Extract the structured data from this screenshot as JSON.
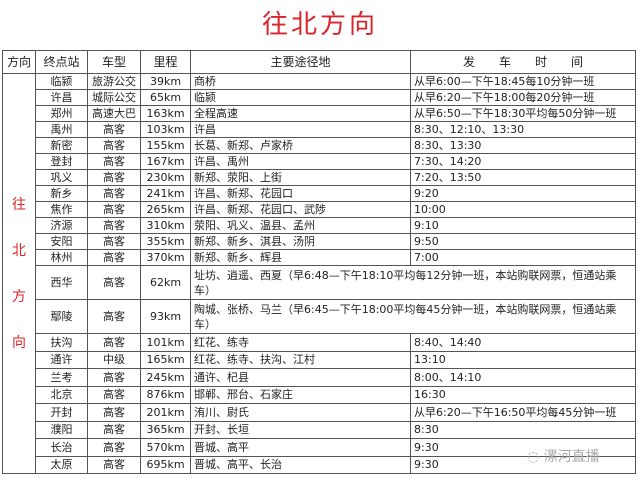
{
  "title": "往北方向",
  "headers": [
    "方向",
    "终点站",
    "车型",
    "里程",
    "主要途径地",
    "发　　车　　时　　间"
  ],
  "direction_chars": [
    "往",
    "北",
    "方",
    "向"
  ],
  "rows": [
    {
      "dest": "临颍",
      "type": "旅游公交",
      "km": "39km",
      "route": "商桥",
      "time": "从早6:00—下午18:45每10分钟一班"
    },
    {
      "dest": "许昌",
      "type": "城际公交",
      "km": "65km",
      "route": "临颍",
      "time": "从早6:20—下午18:00每20分钟一班"
    },
    {
      "dest": "郑州",
      "type": "高速大巴",
      "km": "163km",
      "route": "全程高速",
      "time": "从早6:50—下午18:30平均每50分钟一班"
    },
    {
      "dest": "禹州",
      "type": "高客",
      "km": "103km",
      "route": "许昌",
      "time": "8:30、12:10、13:30"
    },
    {
      "dest": "新密",
      "type": "高客",
      "km": "155km",
      "route": "长葛、新郑、卢家桥",
      "time": "8:30、13:30"
    },
    {
      "dest": "登封",
      "type": "高客",
      "km": "167km",
      "route": "许昌、禹州",
      "time": "7:30、14:20"
    },
    {
      "dest": "巩义",
      "type": "高客",
      "km": "230km",
      "route": "新郑、荥阳、上街",
      "time": "7:20、13:50"
    },
    {
      "dest": "新乡",
      "type": "高客",
      "km": "241km",
      "route": "许昌、新郑、花园口",
      "time": "9:20"
    },
    {
      "dest": "焦作",
      "type": "高客",
      "km": "265km",
      "route": "许昌、新郑、花园口、武陟",
      "time": "10:00"
    },
    {
      "dest": "济源",
      "type": "高客",
      "km": "310km",
      "route": "荥阳、巩义、温县、孟州",
      "time": "9:10"
    },
    {
      "dest": "安阳",
      "type": "高客",
      "km": "355km",
      "route": "新郑、新乡、淇县、汤阴",
      "time": "9:50"
    },
    {
      "dest": "林州",
      "type": "高客",
      "km": "370km",
      "route": "新郑、新乡、辉县",
      "time": "7:00"
    },
    {
      "dest": "西华",
      "type": "高客",
      "km": "62km",
      "merged": "址坊、逍遥、西夏（早6:48—下午18:10平均每12分钟一班，本站购联网票，恒通站乘车）"
    },
    {
      "dest": "鄢陵",
      "type": "高客",
      "km": "93km",
      "merged": "陶城、张桥、马兰（早6:45—下午18:00平均每45分钟一班，本站购联网票，恒通站乘车）"
    },
    {
      "dest": "扶沟",
      "type": "高客",
      "km": "101km",
      "route": "红花、练寺",
      "time": "8:40、14:40"
    },
    {
      "dest": "通许",
      "type": "中级",
      "km": "165km",
      "route": "红花、练寺、扶沟、江村",
      "time": "13:10"
    },
    {
      "dest": "兰考",
      "type": "高客",
      "km": "245km",
      "route": "通许、杞县",
      "time": "8:00、14:10"
    },
    {
      "dest": "北京",
      "type": "高客",
      "km": "876km",
      "route": "邯郸、邢台、石家庄",
      "time": "16:30"
    },
    {
      "dest": "开封",
      "type": "高客",
      "km": "201km",
      "route": "洧川、尉氏",
      "time": "从早6:20—下午16:50平均每45分钟一班"
    },
    {
      "dest": "濮阳",
      "type": "高客",
      "km": "365km",
      "route": "开封、长垣",
      "time": "8:30"
    },
    {
      "dest": "长治",
      "type": "高客",
      "km": "570km",
      "route": "晋城、高平",
      "time": "9:30"
    },
    {
      "dest": "太原",
      "type": "高客",
      "km": "695km",
      "route": "晋城、高平、长治",
      "time": "9:30"
    }
  ],
  "watermark": "漯河直播",
  "colors": {
    "title": "#d9242b",
    "direction": "#d9242b"
  }
}
